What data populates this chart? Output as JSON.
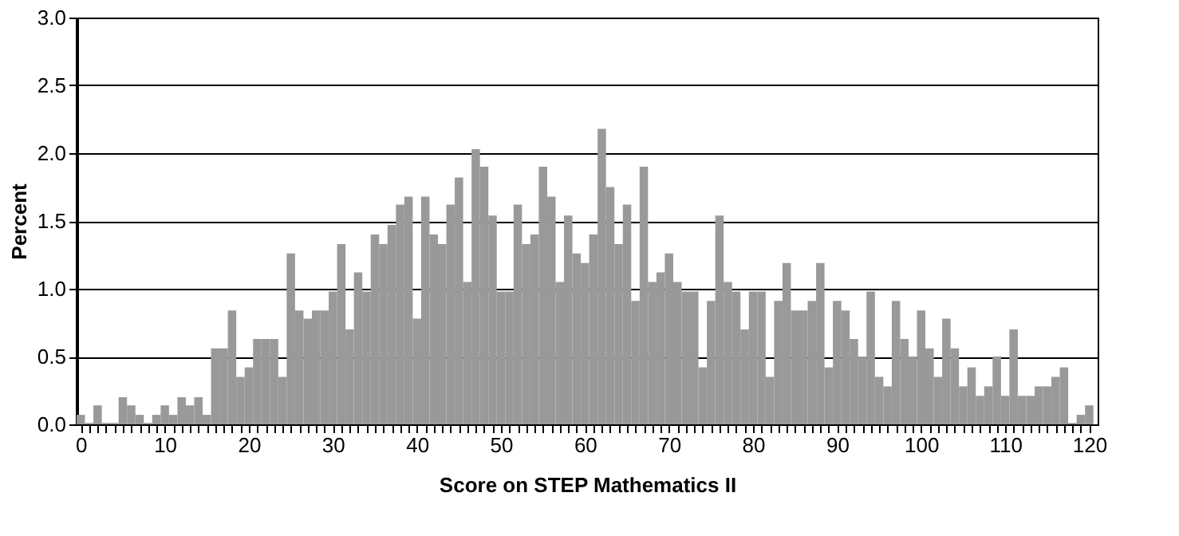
{
  "chart_data": {
    "type": "histogram",
    "xlabel": "Score on STEP Mathematics II",
    "ylabel": "Percent",
    "bins": [
      -0.5,
      0.5,
      1.5,
      2.5,
      3.5,
      4.5,
      5.5,
      6.5,
      7.5,
      8.5,
      9.5,
      10.5,
      11.5,
      12.5,
      13.5,
      14.5,
      15.5,
      16.5,
      17.5,
      18.5,
      19.5,
      20.5,
      21.5,
      22.5,
      23.5,
      24.5,
      25.5,
      26.5,
      27.5,
      28.5,
      29.5,
      30.5,
      31.5,
      32.5,
      33.5,
      34.5,
      35.5,
      36.5,
      37.5,
      38.5,
      39.5,
      40.5,
      41.5,
      42.5,
      43.5,
      44.5,
      45.5,
      46.5,
      47.5,
      48.5,
      49.5,
      50.5,
      51.5,
      52.5,
      53.5,
      54.5,
      55.5,
      56.5,
      57.5,
      58.5,
      59.5,
      60.5,
      61.5,
      62.5,
      63.5,
      64.5,
      65.5,
      66.5,
      67.5,
      68.5,
      69.5,
      70.5,
      71.5,
      72.5,
      73.5,
      74.5,
      75.5,
      76.5,
      77.5,
      78.5,
      79.5,
      80.5,
      81.5,
      82.5,
      83.5,
      84.5,
      85.5,
      86.5,
      87.5,
      88.5,
      89.5,
      90.5,
      91.5,
      92.5,
      93.5,
      94.5,
      95.5,
      96.5,
      97.5,
      98.5,
      99.5,
      100.5,
      101.5,
      102.5,
      103.5,
      104.5,
      105.5,
      106.5,
      107.5,
      108.5,
      109.5,
      110.5,
      111.5,
      112.5,
      113.5,
      114.5,
      115.5,
      116.5,
      117.5,
      118.5,
      119.5,
      120.5
    ],
    "values": [
      0.07,
      0.01,
      0.14,
      0.01,
      0.01,
      0.2,
      0.14,
      0.07,
      0.01,
      0.07,
      0.14,
      0.07,
      0.2,
      0.14,
      0.2,
      0.07,
      0.56,
      0.56,
      0.84,
      0.35,
      0.42,
      0.63,
      0.63,
      0.63,
      0.35,
      1.26,
      0.84,
      0.78,
      0.84,
      0.84,
      0.98,
      1.33,
      0.7,
      1.12,
      0.98,
      1.4,
      1.33,
      1.47,
      1.62,
      1.68,
      0.78,
      1.68,
      1.4,
      1.33,
      1.62,
      1.82,
      1.05,
      2.03,
      1.9,
      1.54,
      0.98,
      0.98,
      1.62,
      1.33,
      1.4,
      1.9,
      1.68,
      1.05,
      1.54,
      1.26,
      1.19,
      1.4,
      2.18,
      1.75,
      1.33,
      1.62,
      0.91,
      1.9,
      1.05,
      1.12,
      1.26,
      1.05,
      0.98,
      0.98,
      0.42,
      0.91,
      1.54,
      1.05,
      0.98,
      0.7,
      0.98,
      0.98,
      0.35,
      0.91,
      1.19,
      0.84,
      0.84,
      0.91,
      1.19,
      0.42,
      0.91,
      0.84,
      0.63,
      0.5,
      0.98,
      0.35,
      0.28,
      0.91,
      0.63,
      0.5,
      0.84,
      0.56,
      0.35,
      0.78,
      0.56,
      0.28,
      0.42,
      0.21,
      0.28,
      0.5,
      0.21,
      0.7,
      0.21,
      0.21,
      0.28,
      0.28,
      0.35,
      0.42,
      0.01,
      0.07,
      0.14
    ],
    "color": "#999999",
    "xlim": [
      -0.5,
      121
    ],
    "xticks": [
      0,
      {
        "value": 1,
        "label": null
      },
      {
        "value": 2,
        "label": null
      },
      {
        "value": 3,
        "label": null
      },
      {
        "value": 4,
        "label": null
      },
      {
        "value": 5,
        "label": null
      },
      {
        "value": 6,
        "label": null
      },
      {
        "value": 7,
        "label": null
      },
      {
        "value": 8,
        "label": null
      },
      {
        "value": 9,
        "label": null
      },
      10,
      {
        "value": 11,
        "label": null
      },
      {
        "value": 12,
        "label": null
      },
      {
        "value": 13,
        "label": null
      },
      {
        "value": 14,
        "label": null
      },
      {
        "value": 15,
        "label": null
      },
      {
        "value": 16,
        "label": null
      },
      {
        "value": 17,
        "label": null
      },
      {
        "value": 18,
        "label": null
      },
      {
        "value": 19,
        "label": null
      },
      20,
      {
        "value": 21,
        "label": null
      },
      {
        "value": 22,
        "label": null
      },
      {
        "value": 23,
        "label": null
      },
      {
        "value": 24,
        "label": null
      },
      {
        "value": 25,
        "label": null
      },
      {
        "value": 26,
        "label": null
      },
      {
        "value": 27,
        "label": null
      },
      {
        "value": 28,
        "label": null
      },
      {
        "value": 29,
        "label": null
      },
      30,
      {
        "value": 31,
        "label": null
      },
      {
        "value": 32,
        "label": null
      },
      {
        "value": 33,
        "label": null
      },
      {
        "value": 34,
        "label": null
      },
      {
        "value": 35,
        "label": null
      },
      {
        "value": 36,
        "label": null
      },
      {
        "value": 37,
        "label": null
      },
      {
        "value": 38,
        "label": null
      },
      {
        "value": 39,
        "label": null
      },
      40,
      {
        "value": 41,
        "label": null
      },
      {
        "value": 42,
        "label": null
      },
      {
        "value": 43,
        "label": null
      },
      {
        "value": 44,
        "label": null
      },
      {
        "value": 45,
        "label": null
      },
      {
        "value": 46,
        "label": null
      },
      {
        "value": 47,
        "label": null
      },
      {
        "value": 48,
        "label": null
      },
      {
        "value": 49,
        "label": null
      },
      50,
      {
        "value": 51,
        "label": null
      },
      {
        "value": 52,
        "label": null
      },
      {
        "value": 53,
        "label": null
      },
      {
        "value": 54,
        "label": null
      },
      {
        "value": 55,
        "label": null
      },
      {
        "value": 56,
        "label": null
      },
      {
        "value": 57,
        "label": null
      },
      {
        "value": 58,
        "label": null
      },
      {
        "value": 59,
        "label": null
      },
      60,
      {
        "value": 61,
        "label": null
      },
      {
        "value": 62,
        "label": null
      },
      {
        "value": 63,
        "label": null
      },
      {
        "value": 64,
        "label": null
      },
      {
        "value": 65,
        "label": null
      },
      {
        "value": 66,
        "label": null
      },
      {
        "value": 67,
        "label": null
      },
      {
        "value": 68,
        "label": null
      },
      {
        "value": 69,
        "label": null
      },
      70,
      {
        "value": 71,
        "label": null
      },
      {
        "value": 72,
        "label": null
      },
      {
        "value": 73,
        "label": null
      },
      {
        "value": 74,
        "label": null
      },
      {
        "value": 75,
        "label": null
      },
      {
        "value": 76,
        "label": null
      },
      {
        "value": 77,
        "label": null
      },
      {
        "value": 78,
        "label": null
      },
      {
        "value": 79,
        "label": null
      },
      80,
      {
        "value": 81,
        "label": null
      },
      {
        "value": 82,
        "label": null
      },
      {
        "value": 83,
        "label": null
      },
      {
        "value": 84,
        "label": null
      },
      {
        "value": 85,
        "label": null
      },
      {
        "value": 86,
        "label": null
      },
      {
        "value": 87,
        "label": null
      },
      {
        "value": 88,
        "label": null
      },
      {
        "value": 89,
        "label": null
      },
      90,
      {
        "value": 91,
        "label": null
      },
      {
        "value": 92,
        "label": null
      },
      {
        "value": 93,
        "label": null
      },
      {
        "value": 94,
        "label": null
      },
      {
        "value": 95,
        "label": null
      },
      {
        "value": 96,
        "label": null
      },
      {
        "value": 97,
        "label": null
      },
      {
        "value": 98,
        "label": null
      },
      {
        "value": 99,
        "label": null
      },
      100,
      {
        "value": 101,
        "label": null
      },
      {
        "value": 102,
        "label": null
      },
      {
        "value": 103,
        "label": null
      },
      {
        "value": 104,
        "label": null
      },
      {
        "value": 105,
        "label": null
      },
      {
        "value": 106,
        "label": null
      },
      {
        "value": 107,
        "label": null
      },
      {
        "value": 108,
        "label": null
      },
      {
        "value": 109,
        "label": null
      },
      110,
      {
        "value": 111,
        "label": null
      },
      {
        "value": 112,
        "label": null
      },
      {
        "value": 113,
        "label": null
      },
      {
        "value": 114,
        "label": null
      },
      {
        "value": 115,
        "label": null
      },
      {
        "value": 116,
        "label": null
      },
      {
        "value": 117,
        "label": null
      },
      {
        "value": 118,
        "label": null
      },
      {
        "value": 119,
        "label": null
      },
      120
    ],
    "ylim": [
      0,
      3.0
    ],
    "yticks": [
      {
        "value": 0,
        "label": "0.0"
      },
      0.5,
      {
        "value": 1,
        "label": "1.0"
      },
      1.5,
      {
        "value": 2,
        "label": "2.0"
      },
      2.5,
      {
        "value": 3,
        "label": "3.0"
      }
    ],
    "grid": "y"
  }
}
